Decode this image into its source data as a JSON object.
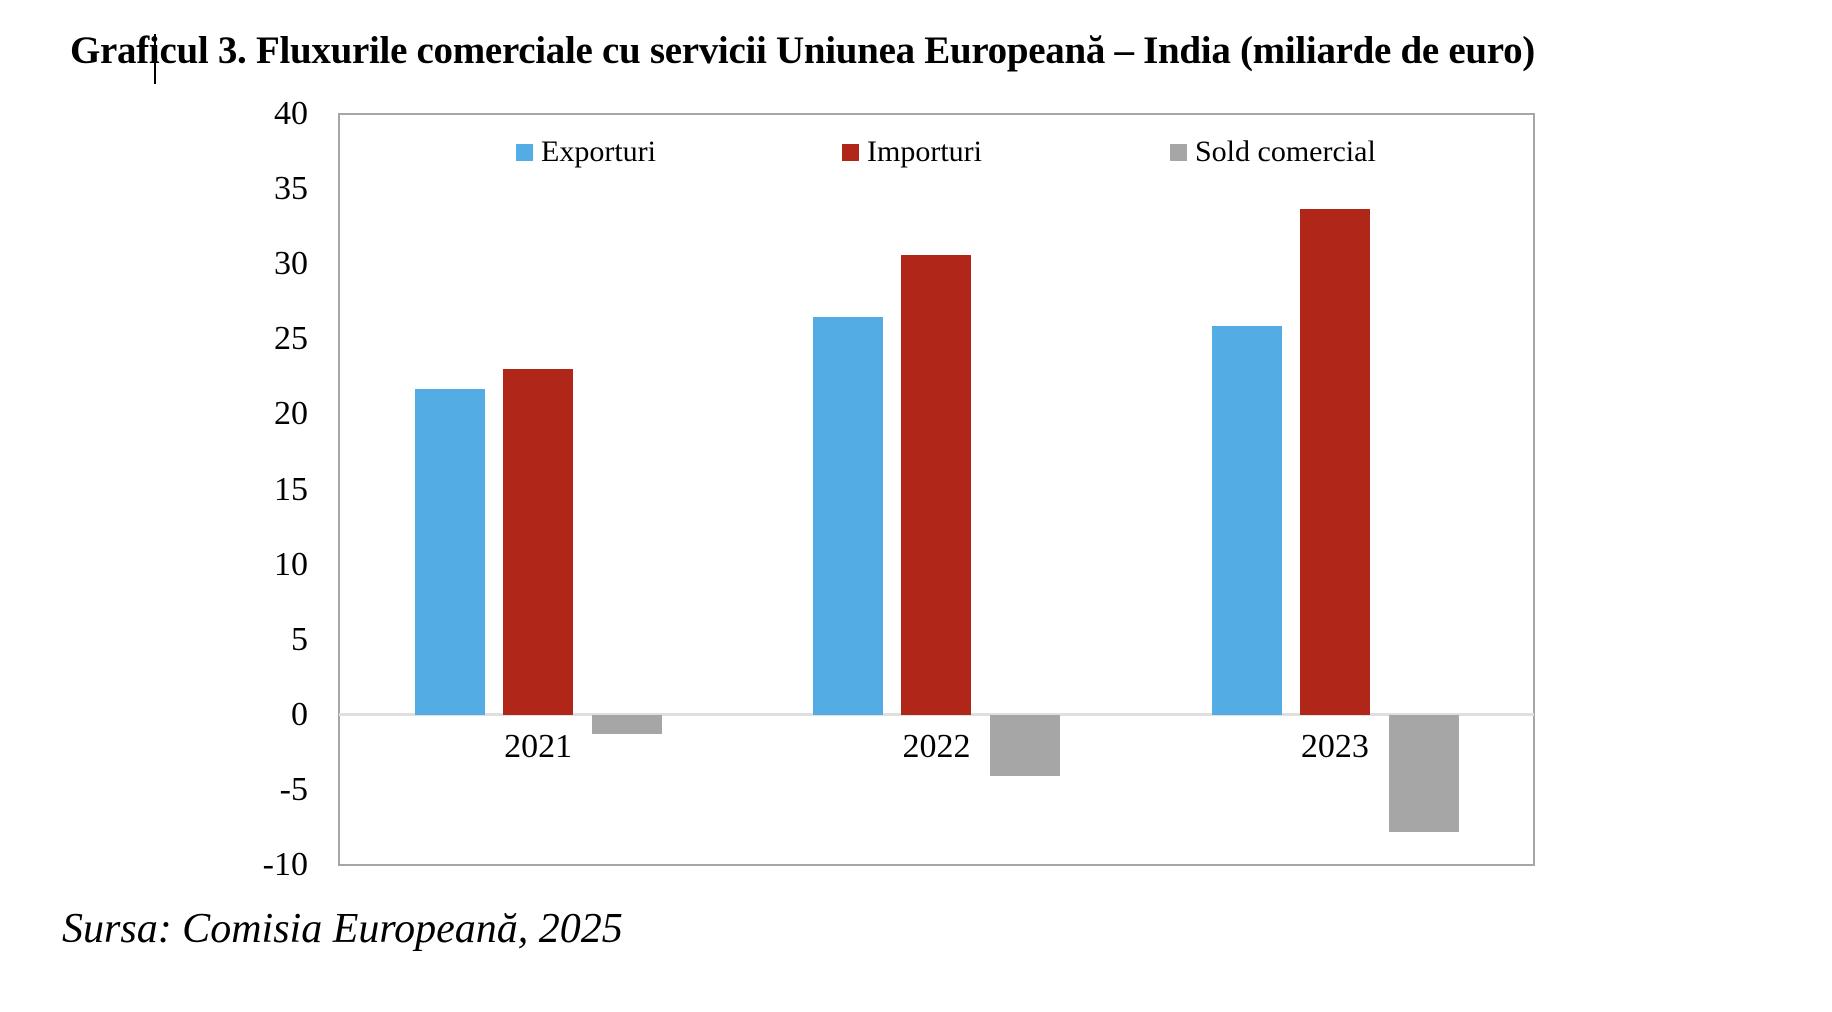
{
  "title": "Graficul 3. Fluxurile comerciale cu servicii Uniunea Europeană – India (miliarde de euro)",
  "source": "Sursa: Comisia Europeană, 2025",
  "chart_data": {
    "type": "bar",
    "title": "Graficul 3. Fluxurile comerciale cu servicii Uniunea Europeană – India (miliarde de euro)",
    "categories": [
      "2021",
      "2022",
      "2023"
    ],
    "series": [
      {
        "name": "Exporturi",
        "color": "#54ACE5",
        "values": [
          21.7,
          26.5,
          25.9
        ]
      },
      {
        "name": "Importuri",
        "color": "#B02618",
        "values": [
          23.0,
          30.6,
          33.7
        ]
      },
      {
        "name": "Sold comercial",
        "color": "#A6A6A6",
        "values": [
          -1.3,
          -4.1,
          -7.8
        ]
      }
    ],
    "xlabel": "",
    "ylabel": "",
    "ylim": [
      -10,
      40
    ],
    "ytick_step": 5,
    "grid": "zero-line-only",
    "legend_position": "top-inside",
    "plot_border_color": "#A6A6A6",
    "zero_line_color": "#DFDFDF"
  }
}
